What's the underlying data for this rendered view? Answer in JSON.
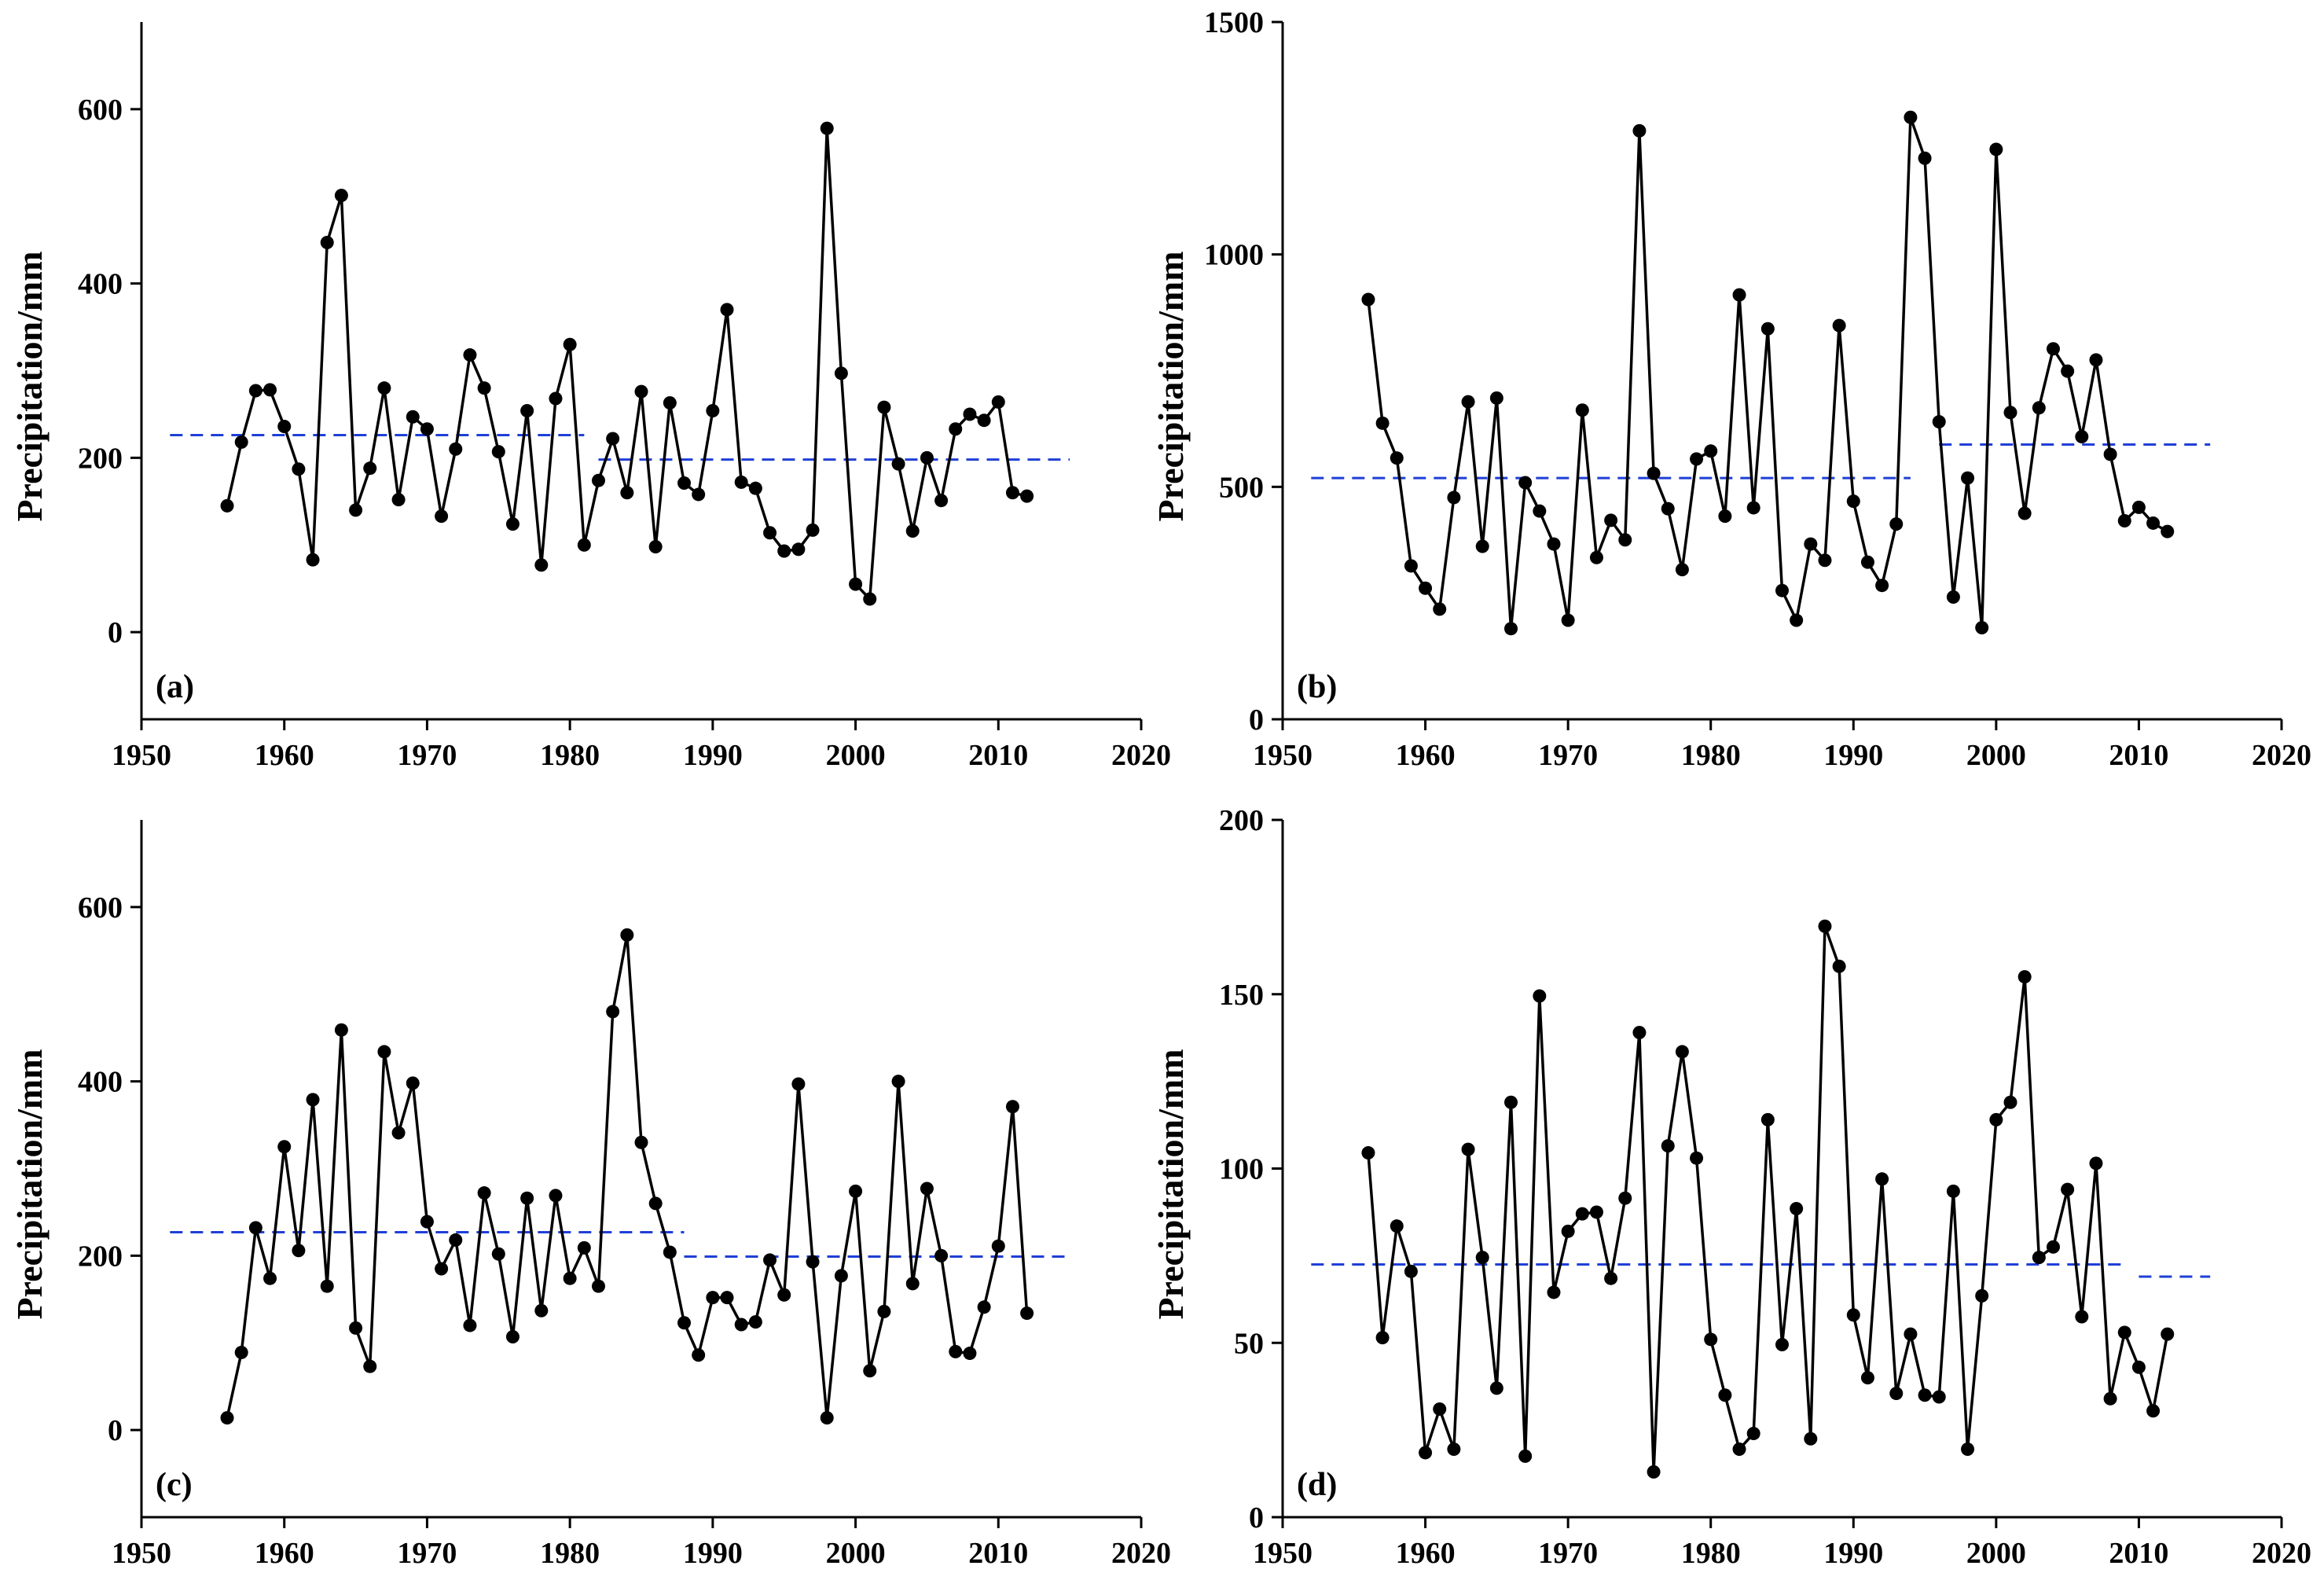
{
  "chart_data": [
    {
      "type": "line",
      "panel_label": "(a)",
      "ylabel": "Precipitation/mm",
      "xlabel": "",
      "xlim": [
        1950,
        2020
      ],
      "ylim": [
        -100,
        700
      ],
      "xticks": [
        1950,
        1960,
        1970,
        1980,
        1990,
        2000,
        2010,
        2020
      ],
      "yticks": [
        0,
        200,
        400,
        600
      ],
      "x": [
        1956,
        1957,
        1958,
        1959,
        1960,
        1961,
        1962,
        1963,
        1964,
        1965,
        1966,
        1967,
        1968,
        1969,
        1970,
        1971,
        1972,
        1973,
        1974,
        1975,
        1976,
        1977,
        1978,
        1979,
        1980,
        1981,
        1982,
        1983,
        1984,
        1985,
        1986,
        1987,
        1988,
        1989,
        1990,
        1991,
        1992,
        1993,
        1994,
        1995,
        1996,
        1997,
        1998,
        1999,
        2000,
        2001,
        2002,
        2003,
        2004,
        2005,
        2006,
        2007,
        2008,
        2009,
        2010,
        2011,
        2012
      ],
      "y": [
        145,
        218,
        277,
        278,
        236,
        187,
        83,
        447,
        501,
        140,
        188,
        280,
        152,
        247,
        233,
        133,
        210,
        318,
        280,
        207,
        124,
        254,
        77,
        268,
        330,
        100,
        174,
        222,
        160,
        276,
        98,
        263,
        171,
        158,
        254,
        370,
        172,
        165,
        114,
        93,
        95,
        117,
        578,
        297,
        55,
        38,
        258,
        193,
        116,
        200,
        151,
        233,
        250,
        243,
        264,
        160,
        156
      ],
      "mean_segments": [
        {
          "x_start": 1952,
          "x_end": 1981,
          "value": 226
        },
        {
          "x_start": 1982,
          "x_end": 2015,
          "value": 198
        }
      ]
    },
    {
      "type": "line",
      "panel_label": "(b)",
      "ylabel": "Precipitation/mm",
      "xlabel": "",
      "xlim": [
        1950,
        2020
      ],
      "ylim": [
        0,
        1500
      ],
      "xticks": [
        1950,
        1960,
        1970,
        1980,
        1990,
        2000,
        2010,
        2020
      ],
      "yticks": [
        0,
        500,
        1000,
        1500
      ],
      "x": [
        1956,
        1957,
        1958,
        1959,
        1960,
        1961,
        1962,
        1963,
        1964,
        1965,
        1966,
        1967,
        1968,
        1969,
        1970,
        1971,
        1972,
        1973,
        1974,
        1975,
        1976,
        1977,
        1978,
        1979,
        1980,
        1981,
        1982,
        1983,
        1984,
        1985,
        1986,
        1987,
        1988,
        1989,
        1990,
        1991,
        1992,
        1993,
        1994,
        1995,
        1996,
        1997,
        1998,
        1999,
        2000,
        2001,
        2002,
        2003,
        2004,
        2005,
        2006,
        2007,
        2008,
        2009,
        2010,
        2011,
        2012
      ],
      "y": [
        903,
        637,
        562,
        330,
        282,
        237,
        477,
        683,
        372,
        691,
        195,
        509,
        448,
        377,
        213,
        665,
        348,
        428,
        386,
        1266,
        529,
        453,
        322,
        560,
        577,
        437,
        913,
        455,
        840,
        277,
        213,
        377,
        342,
        847,
        469,
        338,
        288,
        420,
        1295,
        1207,
        640,
        263,
        519,
        197,
        1226,
        660,
        443,
        670,
        797,
        749,
        608,
        773,
        570,
        427,
        456,
        422,
        404
      ],
      "mean_segments": [
        {
          "x_start": 1952,
          "x_end": 1994,
          "value": 519
        },
        {
          "x_start": 1996,
          "x_end": 2015,
          "value": 591
        }
      ]
    },
    {
      "type": "line",
      "panel_label": "(c)",
      "ylabel": "Precipitation/mm",
      "xlabel": "",
      "xlim": [
        1950,
        2020
      ],
      "ylim": [
        -100,
        700
      ],
      "xticks": [
        1950,
        1960,
        1970,
        1980,
        1990,
        2000,
        2010,
        2020
      ],
      "yticks": [
        0,
        200,
        400,
        600
      ],
      "x": [
        1956,
        1957,
        1958,
        1959,
        1960,
        1961,
        1962,
        1963,
        1964,
        1965,
        1966,
        1967,
        1968,
        1969,
        1970,
        1971,
        1972,
        1973,
        1974,
        1975,
        1976,
        1977,
        1978,
        1979,
        1980,
        1981,
        1982,
        1983,
        1984,
        1985,
        1986,
        1987,
        1988,
        1989,
        1990,
        1991,
        1992,
        1993,
        1994,
        1995,
        1996,
        1997,
        1998,
        1999,
        2000,
        2001,
        2002,
        2003,
        2004,
        2005,
        2006,
        2007,
        2008,
        2009,
        2010,
        2011,
        2012
      ],
      "y": [
        14,
        89,
        232,
        174,
        325,
        206,
        379,
        165,
        459,
        117,
        73,
        434,
        341,
        398,
        239,
        185,
        218,
        120,
        272,
        202,
        107,
        266,
        137,
        269,
        174,
        209,
        165,
        480,
        568,
        330,
        260,
        204,
        123,
        86,
        152,
        152,
        121,
        124,
        195,
        155,
        397,
        193,
        14,
        177,
        274,
        68,
        136,
        400,
        168,
        277,
        200,
        90,
        88,
        141,
        211,
        371,
        134
      ],
      "mean_segments": [
        {
          "x_start": 1952,
          "x_end": 1988,
          "value": 227
        },
        {
          "x_start": 1988,
          "x_end": 2015,
          "value": 199
        }
      ]
    },
    {
      "type": "line",
      "panel_label": "(d)",
      "ylabel": "Precipitation/mm",
      "xlabel": "",
      "xlim": [
        1950,
        2020
      ],
      "ylim": [
        0,
        200
      ],
      "xticks": [
        1950,
        1960,
        1970,
        1980,
        1990,
        2000,
        2010,
        2020
      ],
      "yticks": [
        0,
        50,
        100,
        150,
        200
      ],
      "x": [
        1956,
        1957,
        1958,
        1959,
        1960,
        1961,
        1962,
        1963,
        1964,
        1965,
        1966,
        1967,
        1968,
        1969,
        1970,
        1971,
        1972,
        1973,
        1974,
        1975,
        1976,
        1977,
        1978,
        1979,
        1980,
        1981,
        1982,
        1983,
        1984,
        1985,
        1986,
        1987,
        1988,
        1989,
        1990,
        1991,
        1992,
        1993,
        1994,
        1995,
        1996,
        1997,
        1998,
        1999,
        2000,
        2001,
        2002,
        2003,
        2004,
        2005,
        2006,
        2007,
        2008,
        2009,
        2010,
        2011,
        2012
      ],
      "y": [
        104.5,
        51.5,
        83.5,
        70.5,
        18.5,
        31,
        19.5,
        105.5,
        74.5,
        37,
        119,
        17.5,
        149.5,
        64.5,
        82,
        87,
        87.5,
        68.5,
        91.5,
        139,
        13,
        106.5,
        133.5,
        103,
        51,
        35,
        19.5,
        24,
        114,
        49.5,
        88.5,
        22.5,
        169.5,
        158,
        58,
        40,
        97,
        35.5,
        52.5,
        35,
        34.5,
        93.5,
        19.5,
        63.5,
        114,
        119,
        155,
        74.5,
        77.5,
        94,
        57.5,
        101.5,
        34,
        53,
        43,
        30.5,
        52.5
      ],
      "mean_segments": [
        {
          "x_start": 1952,
          "x_end": 2009,
          "value": 72.5
        },
        {
          "x_start": 2010,
          "x_end": 2015,
          "value": 69
        }
      ]
    }
  ]
}
